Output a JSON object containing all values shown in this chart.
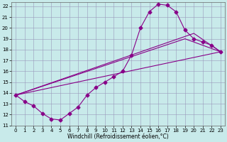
{
  "xlabel": "Windchill (Refroidissement éolien,°C)",
  "xlim": [
    -0.5,
    23.5
  ],
  "ylim": [
    11,
    22.4
  ],
  "xticks": [
    0,
    1,
    2,
    3,
    4,
    5,
    6,
    7,
    8,
    9,
    10,
    11,
    12,
    13,
    14,
    15,
    16,
    17,
    18,
    19,
    20,
    21,
    22,
    23
  ],
  "yticks": [
    11,
    12,
    13,
    14,
    15,
    16,
    17,
    18,
    19,
    20,
    21,
    22
  ],
  "bg_color": "#c8eaea",
  "grid_color": "#9999bb",
  "line_color": "#880088",
  "line1_x": [
    0,
    1,
    2,
    3,
    4,
    5,
    6,
    7,
    8,
    9,
    10,
    11,
    12,
    13,
    14,
    15,
    16,
    17,
    18,
    19,
    20,
    21,
    22,
    23
  ],
  "line1_y": [
    13.8,
    13.2,
    12.8,
    12.1,
    11.6,
    11.5,
    12.1,
    12.7,
    13.8,
    14.5,
    15.0,
    15.5,
    16.0,
    17.5,
    20.0,
    21.5,
    22.2,
    22.1,
    21.5,
    19.8,
    19.0,
    18.7,
    18.4,
    17.8
  ],
  "line2_x": [
    0,
    23
  ],
  "line2_y": [
    13.8,
    17.8
  ],
  "line3_x": [
    0,
    19,
    23
  ],
  "line3_y": [
    13.8,
    19.0,
    17.8
  ],
  "line4_x": [
    0,
    20,
    23
  ],
  "line4_y": [
    13.8,
    19.5,
    17.8
  ],
  "markersize": 2.5,
  "linewidth": 0.8
}
